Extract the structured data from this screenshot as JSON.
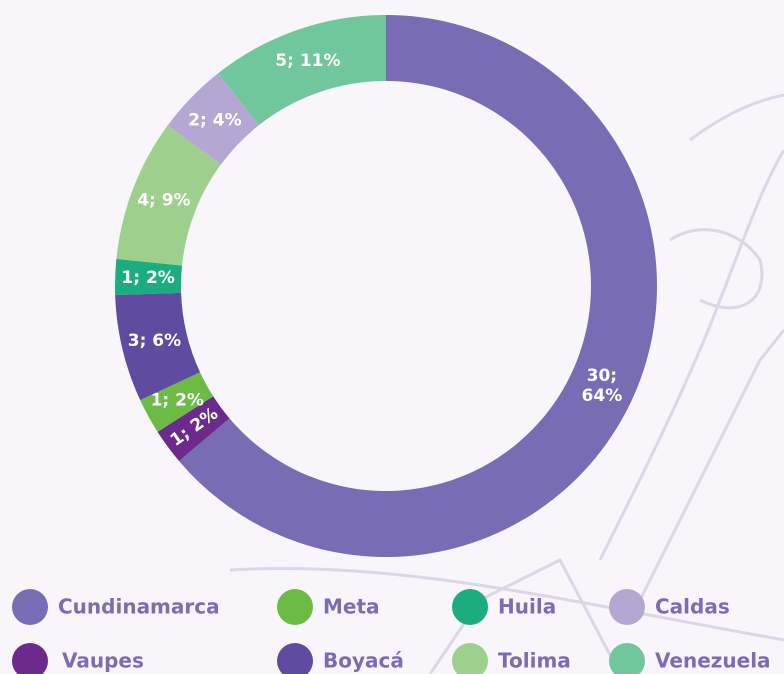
{
  "chart_data": {
    "type": "donut",
    "categories": [
      "Cundinamarca",
      "Vaupes",
      "Meta",
      "Boyacá",
      "Huila",
      "Tolima",
      "Caldas",
      "Venezuela"
    ],
    "values": [
      30,
      1,
      1,
      3,
      1,
      4,
      2,
      5
    ],
    "value_labels": [
      "30; 64%",
      "1; 2%",
      "1; 2%",
      "3; 6%",
      "1; 2%",
      "4; 9%",
      "2; 4%",
      "5; 11%"
    ],
    "colors": [
      "#786cb4",
      "#6c2a8c",
      "#6cbb45",
      "#5f4b9f",
      "#1bad7f",
      "#9dd08d",
      "#b5a7d3",
      "#70c79b"
    ]
  }
}
